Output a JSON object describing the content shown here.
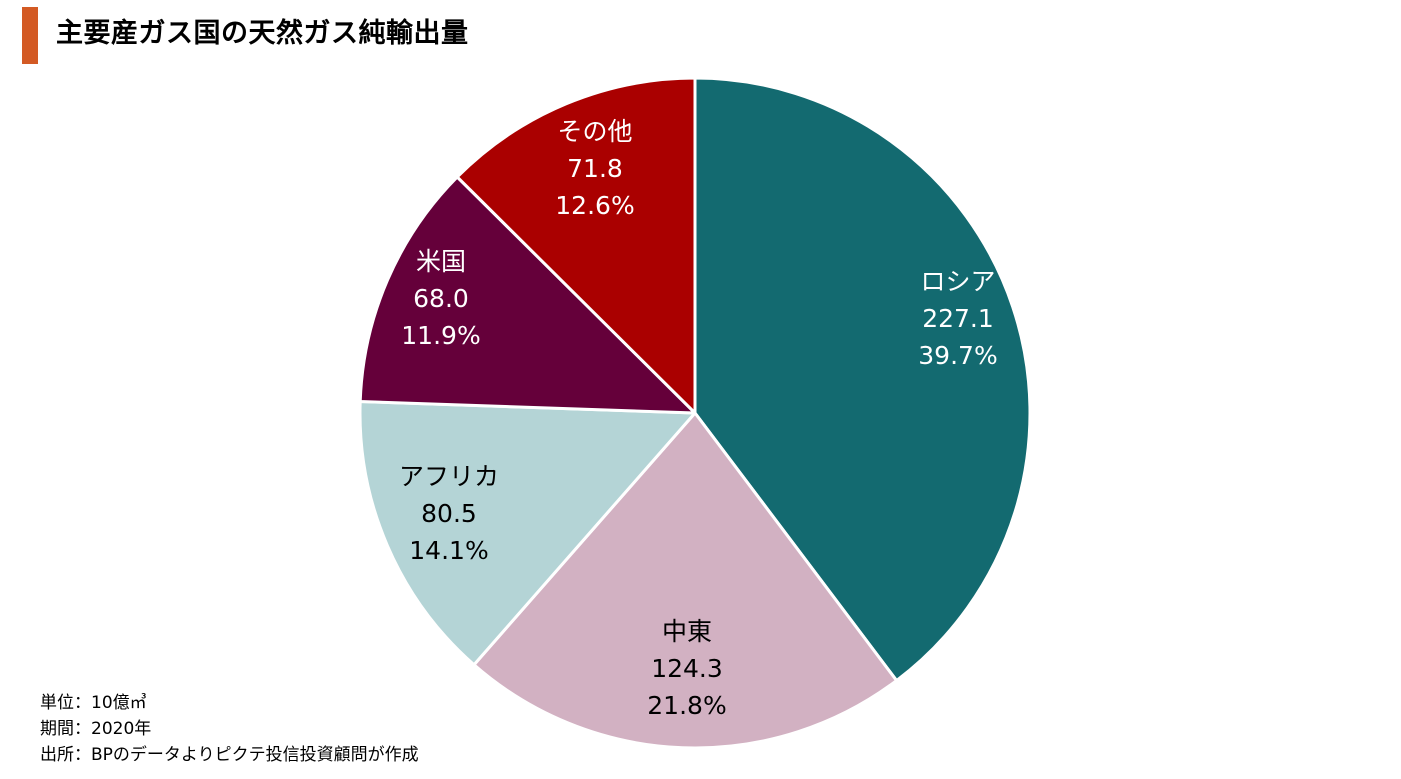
{
  "header": {
    "title": "主要産ガス国の天然ガス純輸出量",
    "accent_color": "#d35a24"
  },
  "chart_data": {
    "type": "pie",
    "categories": [
      "ロシア",
      "中東",
      "アフリカ",
      "米国",
      "その他"
    ],
    "values": [
      227.1,
      124.3,
      80.5,
      68.0,
      71.8
    ],
    "value_labels": [
      "227.1",
      "124.3",
      "80.5",
      "68.0",
      "71.8"
    ],
    "percent_labels": [
      "39.7%",
      "21.8%",
      "14.1%",
      "11.9%",
      "12.6%"
    ],
    "colors": [
      "#136a70",
      "#d2b1c2",
      "#b4d4d6",
      "#65003a",
      "#aa0000"
    ],
    "label_colors": [
      "#ffffff",
      "#000000",
      "#000000",
      "#ffffff",
      "#ffffff"
    ],
    "start": "12 o'clock",
    "direction": "clockwise"
  },
  "footnotes": {
    "unit": "単位：10億㎥",
    "period": "期間：2020年",
    "source": "出所：BPのデータよりピクテ投信投資顧問が作成"
  }
}
